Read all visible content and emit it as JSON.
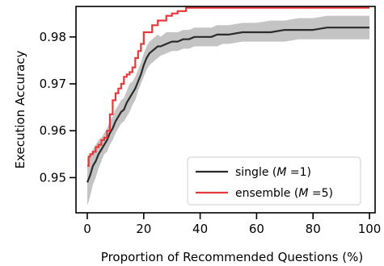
{
  "chart_data": {
    "type": "line",
    "xlabel": "Proportion of Recommended Questions (%)",
    "ylabel": "Execution Accuracy",
    "xlim": [
      -4,
      102
    ],
    "ylim": [
      0.9425,
      0.9865
    ],
    "xticks": [
      0,
      20,
      40,
      60,
      80,
      100
    ],
    "yticks": [
      0.95,
      0.96,
      0.97,
      0.98
    ],
    "xtick_labels": [
      "0",
      "20",
      "40",
      "60",
      "80",
      "100"
    ],
    "ytick_labels": [
      "0.95",
      "0.96",
      "0.97",
      "0.98"
    ],
    "grid": false,
    "legend_position": "lower-right",
    "series": [
      {
        "name_prefix": "single (",
        "name_var": "M",
        "name_suffix": " =1)",
        "color": "#2b2b2b",
        "style": "line-with-band",
        "x": [
          0,
          1,
          2,
          3,
          4,
          5,
          6,
          7,
          8,
          9,
          10,
          11,
          12,
          13,
          14,
          15,
          16,
          17,
          18,
          19,
          20,
          21,
          22,
          23,
          24,
          25,
          26,
          28,
          30,
          32,
          34,
          36,
          38,
          40,
          42,
          44,
          46,
          48,
          50,
          55,
          60,
          65,
          70,
          75,
          80,
          85,
          90,
          95,
          100
        ],
        "y": [
          0.949,
          0.9505,
          0.9525,
          0.9535,
          0.955,
          0.956,
          0.957,
          0.958,
          0.9595,
          0.9605,
          0.962,
          0.963,
          0.964,
          0.9645,
          0.966,
          0.967,
          0.968,
          0.969,
          0.9705,
          0.972,
          0.974,
          0.9755,
          0.9765,
          0.977,
          0.9775,
          0.978,
          0.978,
          0.9785,
          0.979,
          0.979,
          0.9795,
          0.9795,
          0.98,
          0.98,
          0.98,
          0.98,
          0.9805,
          0.9805,
          0.9805,
          0.981,
          0.981,
          0.981,
          0.9815,
          0.9815,
          0.9815,
          0.982,
          0.982,
          0.982,
          0.982
        ],
        "band_lower": [
          0.944,
          0.946,
          0.9485,
          0.95,
          0.952,
          0.9535,
          0.955,
          0.9555,
          0.957,
          0.958,
          0.9595,
          0.9605,
          0.9615,
          0.962,
          0.963,
          0.964,
          0.9655,
          0.9665,
          0.9685,
          0.97,
          0.9715,
          0.973,
          0.974,
          0.9745,
          0.975,
          0.9755,
          0.976,
          0.9765,
          0.977,
          0.977,
          0.9775,
          0.9775,
          0.978,
          0.978,
          0.978,
          0.978,
          0.978,
          0.9785,
          0.9785,
          0.979,
          0.979,
          0.979,
          0.979,
          0.9795,
          0.9795,
          0.9795,
          0.9795,
          0.9795,
          0.9795
        ],
        "band_upper": [
          0.954,
          0.955,
          0.956,
          0.957,
          0.958,
          0.9585,
          0.9595,
          0.9605,
          0.962,
          0.963,
          0.9645,
          0.9655,
          0.9665,
          0.967,
          0.9685,
          0.97,
          0.9705,
          0.9715,
          0.973,
          0.9745,
          0.9765,
          0.978,
          0.979,
          0.9795,
          0.98,
          0.9805,
          0.98,
          0.981,
          0.981,
          0.981,
          0.9815,
          0.9815,
          0.982,
          0.982,
          0.982,
          0.982,
          0.9825,
          0.9825,
          0.9825,
          0.983,
          0.983,
          0.9835,
          0.9835,
          0.984,
          0.984,
          0.9845,
          0.9845,
          0.9845,
          0.9845
        ]
      },
      {
        "name_prefix": "ensemble (",
        "name_var": "M",
        "name_suffix": " =5)",
        "color": "#e8393a",
        "style": "step",
        "x": [
          0,
          0.5,
          1,
          2,
          3,
          4,
          5,
          6,
          7,
          8,
          9,
          10,
          11,
          12,
          13,
          14,
          15,
          16,
          17,
          18,
          19,
          20,
          21,
          22,
          23,
          24,
          25,
          26,
          28,
          30,
          32,
          34,
          35,
          36,
          40,
          50,
          60,
          70,
          80,
          90,
          100
        ],
        "y": [
          0.9525,
          0.9545,
          0.955,
          0.9555,
          0.9565,
          0.957,
          0.958,
          0.9585,
          0.96,
          0.9635,
          0.9665,
          0.968,
          0.969,
          0.97,
          0.9715,
          0.972,
          0.9725,
          0.9735,
          0.9755,
          0.977,
          0.9785,
          0.981,
          0.981,
          0.981,
          0.9825,
          0.9825,
          0.9835,
          0.9835,
          0.9845,
          0.985,
          0.9855,
          0.9855,
          0.9862,
          0.9862,
          0.9862,
          0.9862,
          0.9862,
          0.9862,
          0.9862,
          0.9862,
          0.9862
        ]
      }
    ]
  }
}
